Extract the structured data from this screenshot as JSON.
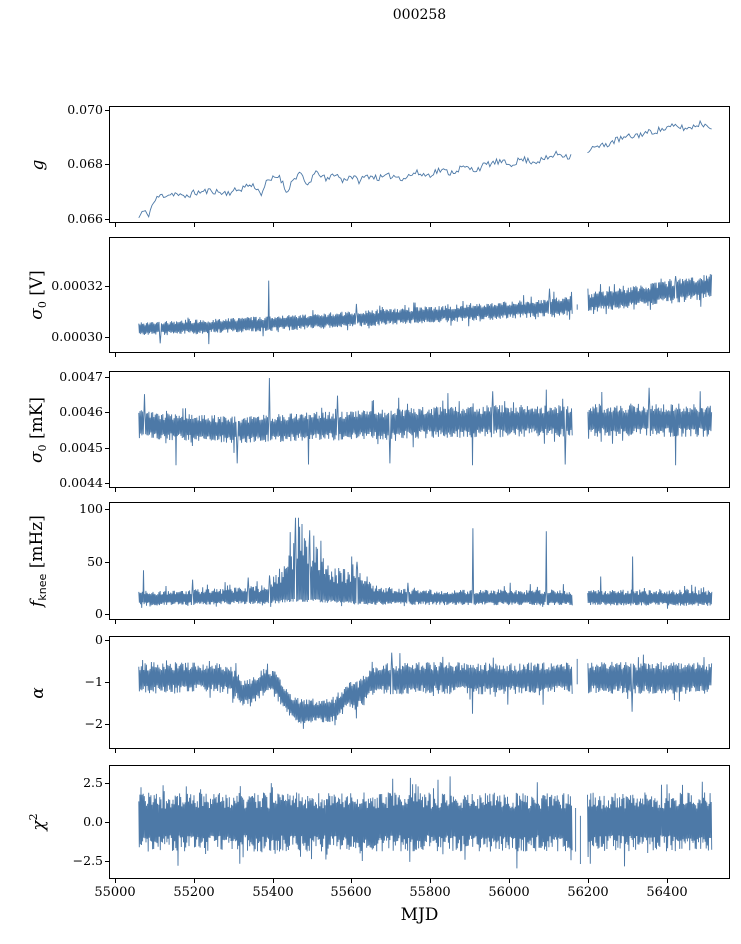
{
  "title": "000258",
  "colors": {
    "line": "#4d79a7",
    "axis": "#000000",
    "text": "#000000",
    "background": "#ffffff"
  },
  "axes": {
    "xlabel": "MJD",
    "xlim": [
      54985,
      56555
    ],
    "xticks": [
      {
        "value": 55000,
        "label": "55000"
      },
      {
        "value": 55200,
        "label": "55200"
      },
      {
        "value": 55400,
        "label": "55400"
      },
      {
        "value": 55600,
        "label": "55600"
      },
      {
        "value": 55800,
        "label": "55800"
      },
      {
        "value": 56000,
        "label": "56000"
      },
      {
        "value": 56200,
        "label": "56200"
      },
      {
        "value": 56400,
        "label": "56400"
      }
    ]
  },
  "chart_data": [
    {
      "name": "g",
      "type": "line",
      "ylabel": {
        "main": "g",
        "sub": "",
        "sup": "",
        "post": ""
      },
      "ylabel_text": "g",
      "ylim": [
        0.0659,
        0.0701
      ],
      "yticks": [
        {
          "value": 0.066,
          "label": "0.066"
        },
        {
          "value": 0.068,
          "label": "0.068"
        },
        {
          "value": 0.07,
          "label": "0.070"
        }
      ],
      "series": {
        "mode": "trace",
        "seed": 11,
        "step": 4.2,
        "x_start": 55058,
        "x_end": 56512,
        "gap": [
          56158,
          56196
        ],
        "amplitude": [
          [
            55058,
            0.00012
          ],
          [
            56512,
            0.00012
          ]
        ],
        "trend": [
          [
            55058,
            0.06605
          ],
          [
            55068,
            0.0663
          ],
          [
            55082,
            0.06615
          ],
          [
            55095,
            0.0666
          ],
          [
            55110,
            0.06685
          ],
          [
            55130,
            0.0669
          ],
          [
            55150,
            0.06695
          ],
          [
            55170,
            0.0668
          ],
          [
            55195,
            0.06695
          ],
          [
            55220,
            0.067
          ],
          [
            55245,
            0.06705
          ],
          [
            55270,
            0.06695
          ],
          [
            55295,
            0.067
          ],
          [
            55315,
            0.0671
          ],
          [
            55335,
            0.06725
          ],
          [
            55355,
            0.0672
          ],
          [
            55367,
            0.0669
          ],
          [
            55380,
            0.0673
          ],
          [
            55400,
            0.0675
          ],
          [
            55415,
            0.0676
          ],
          [
            55432,
            0.067
          ],
          [
            55448,
            0.0674
          ],
          [
            55465,
            0.0677
          ],
          [
            55485,
            0.0672
          ],
          [
            55500,
            0.0676
          ],
          [
            55515,
            0.0677
          ],
          [
            55535,
            0.0674
          ],
          [
            55555,
            0.0677
          ],
          [
            55575,
            0.0674
          ],
          [
            55595,
            0.0676
          ],
          [
            55615,
            0.0674
          ],
          [
            55640,
            0.0676
          ],
          [
            55670,
            0.0675
          ],
          [
            55700,
            0.0676
          ],
          [
            55730,
            0.0675
          ],
          [
            55760,
            0.0677
          ],
          [
            55790,
            0.0676
          ],
          [
            55820,
            0.0678
          ],
          [
            55850,
            0.0677
          ],
          [
            55880,
            0.0679
          ],
          [
            55910,
            0.0678
          ],
          [
            55940,
            0.068
          ],
          [
            55970,
            0.0681
          ],
          [
            56000,
            0.068
          ],
          [
            56030,
            0.0682
          ],
          [
            56060,
            0.0681
          ],
          [
            56090,
            0.0682
          ],
          [
            56120,
            0.0684
          ],
          [
            56150,
            0.0683
          ],
          [
            56180,
            0.0684
          ],
          [
            56210,
            0.0686
          ],
          [
            56240,
            0.0687
          ],
          [
            56270,
            0.0689
          ],
          [
            56300,
            0.069
          ],
          [
            56330,
            0.0691
          ],
          [
            56360,
            0.0692
          ],
          [
            56390,
            0.0693
          ],
          [
            56420,
            0.0694
          ],
          [
            56450,
            0.0693
          ],
          [
            56480,
            0.0695
          ],
          [
            56512,
            0.0694
          ]
        ]
      }
    },
    {
      "name": "sigma0_V",
      "type": "line",
      "ylabel": {
        "main": "σ",
        "sub": "0",
        "sup": "",
        "post": " [V]"
      },
      "ylabel_text": "sigma_0 [V]",
      "ylim": [
        0.000294,
        0.000339
      ],
      "yticks": [
        {
          "value": 0.0003,
          "label": "0.00030"
        },
        {
          "value": 0.00032,
          "label": "0.00032"
        }
      ],
      "series": {
        "mode": "band",
        "seed": 22,
        "step": 1.6,
        "x_start": 55058,
        "x_end": 56512,
        "gap": [
          56158,
          56196
        ],
        "gap_segments": [
          [
            56170,
            0.0003107,
            0.0003128
          ]
        ],
        "amplitude": [
          [
            55058,
            2.8e-06
          ],
          [
            55600,
            3.2e-06
          ],
          [
            56100,
            3.6e-06
          ],
          [
            56512,
            5e-06
          ]
        ],
        "trend": [
          [
            55058,
            0.000303
          ],
          [
            55200,
            0.000304
          ],
          [
            55400,
            0.0003052
          ],
          [
            55600,
            0.000307
          ],
          [
            55800,
            0.0003088
          ],
          [
            56000,
            0.0003105
          ],
          [
            56160,
            0.0003124
          ],
          [
            56200,
            0.0003135
          ],
          [
            56350,
            0.0003165
          ],
          [
            56512,
            0.00032
          ]
        ],
        "spikes": [
          [
            55112,
            0.0002974
          ],
          [
            55235,
            0.0002971
          ],
          [
            55388,
            0.0003222
          ],
          [
            55500,
            0.0003105
          ],
          [
            55610,
            0.000313
          ],
          [
            56100,
            0.000319
          ],
          [
            56420,
            0.000324
          ]
        ]
      }
    },
    {
      "name": "sigma0_mK",
      "type": "line",
      "ylabel": {
        "main": "σ",
        "sub": "0",
        "sup": "",
        "post": " [mK]"
      },
      "ylabel_text": "sigma_0 [mK]",
      "ylim": [
        0.004388,
        0.004715
      ],
      "yticks": [
        {
          "value": 0.0044,
          "label": "0.0044"
        },
        {
          "value": 0.0045,
          "label": "0.0045"
        },
        {
          "value": 0.0046,
          "label": "0.0046"
        },
        {
          "value": 0.0047,
          "label": "0.0047"
        }
      ],
      "series": {
        "mode": "band",
        "seed": 33,
        "step": 1.6,
        "x_start": 55058,
        "x_end": 56512,
        "gap": [
          56158,
          56196
        ],
        "amplitude": [
          [
            55058,
            3.8e-05
          ],
          [
            55400,
            4e-05
          ],
          [
            55800,
            4.5e-05
          ],
          [
            56512,
            4.8e-05
          ]
        ],
        "trend": [
          [
            55058,
            0.00457
          ],
          [
            55120,
            0.00456
          ],
          [
            55200,
            0.004556
          ],
          [
            55300,
            0.004552
          ],
          [
            55400,
            0.004555
          ],
          [
            55500,
            0.00456
          ],
          [
            55650,
            0.004565
          ],
          [
            55800,
            0.004572
          ],
          [
            55950,
            0.004575
          ],
          [
            56100,
            0.004576
          ],
          [
            56250,
            0.004578
          ],
          [
            56512,
            0.004578
          ]
        ],
        "spikes": [
          [
            55072,
            0.004652
          ],
          [
            55152,
            0.00445
          ],
          [
            55308,
            0.004455
          ],
          [
            55390,
            0.004698
          ],
          [
            55488,
            0.004452
          ],
          [
            55562,
            0.004648
          ],
          [
            55695,
            0.004455
          ],
          [
            55842,
            0.004655
          ],
          [
            55905,
            0.00445
          ],
          [
            55955,
            0.00466
          ],
          [
            56092,
            0.004665
          ],
          [
            56140,
            0.004452
          ],
          [
            56232,
            0.004658
          ],
          [
            56352,
            0.00467
          ],
          [
            56420,
            0.00445
          ],
          [
            56482,
            0.00466
          ]
        ]
      }
    },
    {
      "name": "f_knee",
      "type": "line",
      "ylabel": {
        "main": "f",
        "sub": "knee",
        "sub_sans": true,
        "sup": "",
        "post": " [mHz]"
      },
      "ylabel_text": "f_knee [mHz]",
      "ylim": [
        -4.5,
        106
      ],
      "yticks": [
        {
          "value": 0,
          "label": "0"
        },
        {
          "value": 50,
          "label": "50"
        },
        {
          "value": 100,
          "label": "100"
        }
      ],
      "series": {
        "mode": "band",
        "seed": 44,
        "step": 1.5,
        "x_start": 55058,
        "x_end": 56512,
        "gap": [
          56158,
          56196
        ],
        "min": 3,
        "amplitude_down": [
          [
            55058,
            6
          ],
          [
            56512,
            6
          ]
        ],
        "amplitude_up": [
          [
            55058,
            8
          ],
          [
            55300,
            10
          ],
          [
            55380,
            12
          ],
          [
            55420,
            30
          ],
          [
            55440,
            45
          ],
          [
            55465,
            60
          ],
          [
            55490,
            55
          ],
          [
            55520,
            42
          ],
          [
            55550,
            28
          ],
          [
            55580,
            30
          ],
          [
            55605,
            35
          ],
          [
            55630,
            20
          ],
          [
            55660,
            12
          ],
          [
            55750,
            9
          ],
          [
            55900,
            9
          ],
          [
            56000,
            10
          ],
          [
            56100,
            9
          ],
          [
            56250,
            9
          ],
          [
            56400,
            10
          ],
          [
            56512,
            9
          ]
        ],
        "trend": [
          [
            55058,
            14
          ],
          [
            55400,
            16
          ],
          [
            55460,
            18
          ],
          [
            55520,
            17
          ],
          [
            55600,
            15
          ],
          [
            56512,
            14
          ]
        ],
        "spikes": [
          [
            55070,
            42
          ],
          [
            55195,
            33
          ],
          [
            55335,
            35
          ],
          [
            55390,
            37
          ],
          [
            55455,
            92
          ],
          [
            55472,
            86
          ],
          [
            55492,
            80
          ],
          [
            55520,
            70
          ],
          [
            55598,
            55
          ],
          [
            55612,
            50
          ],
          [
            55740,
            30
          ],
          [
            55906,
            82
          ],
          [
            56000,
            30
          ],
          [
            56091,
            79
          ],
          [
            56230,
            36
          ],
          [
            56311,
            55
          ],
          [
            56460,
            28
          ]
        ]
      }
    },
    {
      "name": "alpha",
      "type": "line",
      "ylabel": {
        "main": "α",
        "sub": "",
        "sup": "",
        "post": ""
      },
      "ylabel_text": "alpha",
      "ylim": [
        -2.56,
        0.07
      ],
      "yticks": [
        {
          "value": 0,
          "label": "0"
        },
        {
          "value": -1,
          "label": "−1"
        },
        {
          "value": -2,
          "label": "−2"
        }
      ],
      "series": {
        "mode": "band",
        "seed": 55,
        "step": 1.6,
        "x_start": 55058,
        "x_end": 56512,
        "gap": [
          56158,
          56196
        ],
        "gap_segments": [
          [
            56170,
            -1.05,
            -0.45
          ]
        ],
        "amplitude": [
          [
            55058,
            0.38
          ],
          [
            55300,
            0.34
          ],
          [
            55450,
            0.3
          ],
          [
            55600,
            0.33
          ],
          [
            55700,
            0.38
          ],
          [
            56512,
            0.38
          ]
        ],
        "trend": [
          [
            55058,
            -0.9
          ],
          [
            55250,
            -0.88
          ],
          [
            55290,
            -0.95
          ],
          [
            55320,
            -1.22
          ],
          [
            55345,
            -1.25
          ],
          [
            55365,
            -1.05
          ],
          [
            55385,
            -0.95
          ],
          [
            55405,
            -1.05
          ],
          [
            55425,
            -1.35
          ],
          [
            55445,
            -1.6
          ],
          [
            55470,
            -1.7
          ],
          [
            55520,
            -1.68
          ],
          [
            55555,
            -1.65
          ],
          [
            55575,
            -1.45
          ],
          [
            55590,
            -1.28
          ],
          [
            55605,
            -1.35
          ],
          [
            55620,
            -1.25
          ],
          [
            55640,
            -1.05
          ],
          [
            55660,
            -0.92
          ],
          [
            55800,
            -0.9
          ],
          [
            56000,
            -0.92
          ],
          [
            56200,
            -0.9
          ],
          [
            56512,
            -0.9
          ]
        ],
        "spikes": [
          [
            55700,
            -0.3
          ],
          [
            55905,
            -1.75
          ],
          [
            56310,
            -1.7
          ]
        ]
      }
    },
    {
      "name": "chi2",
      "type": "line",
      "ylabel": {
        "main": "χ",
        "sub": "",
        "sup": "2",
        "post": ""
      },
      "ylabel_text": "chi^2",
      "ylim": [
        -3.6,
        3.6
      ],
      "yticks": [
        {
          "value": 2.5,
          "label": "2.5"
        },
        {
          "value": 0,
          "label": "0.0"
        },
        {
          "value": -2.5,
          "label": "−2.5"
        }
      ],
      "series": {
        "mode": "band",
        "seed": 66,
        "step": 1.4,
        "x_start": 55058,
        "x_end": 56512,
        "gap": [
          56158,
          56196
        ],
        "gap_segments": [
          [
            56166,
            -1.9,
            0.9
          ],
          [
            56178,
            -2.7,
            0.4
          ]
        ],
        "amplitude": [
          [
            55058,
            1.9
          ],
          [
            56512,
            1.9
          ]
        ],
        "trend": [
          [
            55058,
            0
          ],
          [
            56512,
            0
          ]
        ],
        "spikes": []
      }
    }
  ]
}
